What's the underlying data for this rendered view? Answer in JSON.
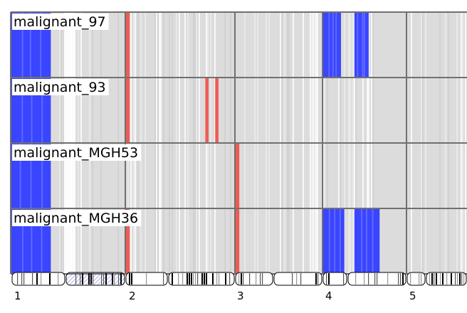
{
  "chart_data": {
    "type": "heatmap",
    "rows": [
      "malignant_97",
      "malignant_93",
      "malignant_MGH53",
      "malignant_MGH36"
    ],
    "x_axis": {
      "ticks": [
        {
          "label": "1",
          "chromosome": 1
        },
        {
          "label": "2",
          "chromosome": 2
        },
        {
          "label": "3",
          "chromosome": 3
        },
        {
          "label": "4",
          "chromosome": 4
        },
        {
          "label": "5",
          "chromosome": 5
        }
      ],
      "chromosomes_shown": [
        1,
        2,
        3,
        4,
        5
      ],
      "last_chromosome_truncated": true
    },
    "colors": {
      "loss": "#2f3cff",
      "gain": "#f0443a",
      "neutral": "#dcdcdc",
      "grid": "#707070",
      "label_background": "#ffffff"
    },
    "color_meaning": {
      "blue": "copy-number loss",
      "red": "copy-number gain"
    },
    "legend": "none",
    "title": "",
    "xlabel": "",
    "ylabel": "",
    "events": [
      {
        "row": 0,
        "chromosome": 1,
        "arm": "p",
        "type": "loss",
        "start": 0.0,
        "end": 0.35
      },
      {
        "row": 0,
        "chromosome": 2,
        "type": "gain",
        "start": 0.0,
        "end": 0.04
      },
      {
        "row": 0,
        "chromosome": 4,
        "type": "loss",
        "start": 0.0,
        "end": 0.22
      },
      {
        "row": 0,
        "chromosome": 4,
        "type": "loss",
        "start": 0.38,
        "end": 0.55
      },
      {
        "row": 1,
        "chromosome": 1,
        "arm": "p",
        "type": "loss",
        "start": 0.0,
        "end": 0.35
      },
      {
        "row": 1,
        "chromosome": 2,
        "type": "gain",
        "start": 0.0,
        "end": 0.04
      },
      {
        "row": 1,
        "chromosome": 2,
        "type": "gain",
        "start": 0.73,
        "end": 0.76
      },
      {
        "row": 1,
        "chromosome": 2,
        "type": "gain",
        "start": 0.82,
        "end": 0.85
      },
      {
        "row": 2,
        "chromosome": 1,
        "arm": "p",
        "type": "loss",
        "start": 0.0,
        "end": 0.35
      },
      {
        "row": 2,
        "chromosome": 3,
        "type": "gain",
        "start": 0.0,
        "end": 0.05
      },
      {
        "row": 3,
        "chromosome": 1,
        "arm": "p",
        "type": "loss",
        "start": 0.0,
        "end": 0.35
      },
      {
        "row": 3,
        "chromosome": 2,
        "type": "gain",
        "start": 0.0,
        "end": 0.04
      },
      {
        "row": 3,
        "chromosome": 3,
        "type": "gain",
        "start": 0.0,
        "end": 0.05
      },
      {
        "row": 3,
        "chromosome": 4,
        "type": "loss",
        "start": 0.0,
        "end": 0.26
      },
      {
        "row": 3,
        "chromosome": 4,
        "type": "loss",
        "start": 0.38,
        "end": 0.68
      }
    ]
  }
}
